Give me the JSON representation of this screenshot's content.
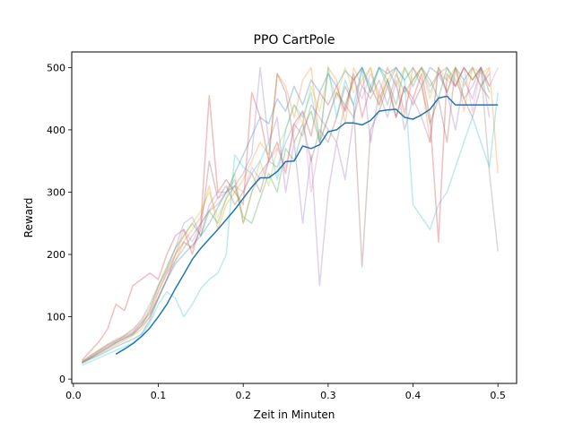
{
  "chart_data": {
    "type": "line",
    "title": "PPO CartPole",
    "xlabel": "Zeit in Minuten",
    "ylabel": "Reward",
    "xlim": [
      -0.002,
      0.522
    ],
    "ylim": [
      -7,
      525
    ],
    "xticks": [
      0.0,
      0.1,
      0.2,
      0.3,
      0.4,
      0.5
    ],
    "xtick_labels": [
      "0.0",
      "0.1",
      "0.2",
      "0.3",
      "0.4",
      "0.5"
    ],
    "yticks": [
      0,
      100,
      200,
      300,
      400,
      500
    ],
    "ytick_labels": [
      "0",
      "100",
      "200",
      "300",
      "400",
      "500"
    ],
    "grid": false,
    "legend": "none",
    "runs_opacity": 0.3,
    "series": [
      {
        "role": "run",
        "color": "#1f77b4",
        "x": [
          0.01,
          0.02,
          0.03,
          0.04,
          0.05,
          0.06,
          0.07,
          0.08,
          0.09,
          0.1,
          0.11,
          0.12,
          0.13,
          0.14,
          0.15,
          0.16,
          0.17,
          0.18,
          0.19,
          0.2,
          0.21,
          0.22,
          0.23,
          0.24,
          0.25,
          0.26,
          0.27,
          0.28,
          0.29,
          0.3,
          0.31,
          0.32,
          0.33,
          0.34,
          0.35,
          0.36,
          0.37,
          0.38,
          0.39,
          0.4,
          0.41,
          0.42,
          0.43,
          0.44,
          0.45,
          0.46,
          0.47,
          0.48,
          0.49
        ],
        "y": [
          25,
          32,
          38,
          45,
          52,
          58,
          64,
          72,
          95,
          130,
          160,
          185,
          200,
          215,
          230,
          250,
          275,
          300,
          330,
          360,
          390,
          420,
          410,
          450,
          430,
          470,
          440,
          480,
          460,
          490,
          470,
          495,
          480,
          500,
          470,
          500,
          490,
          500,
          480,
          500,
          470,
          500,
          490,
          460,
          500,
          480,
          500,
          470,
          490
        ]
      },
      {
        "role": "run",
        "color": "#ff7f0e",
        "x": [
          0.01,
          0.02,
          0.03,
          0.04,
          0.05,
          0.06,
          0.07,
          0.08,
          0.09,
          0.1,
          0.11,
          0.12,
          0.13,
          0.14,
          0.15,
          0.16,
          0.17,
          0.18,
          0.19,
          0.2,
          0.21,
          0.22,
          0.23,
          0.24,
          0.25,
          0.26,
          0.27,
          0.28,
          0.29,
          0.3,
          0.31,
          0.32,
          0.33,
          0.34,
          0.35,
          0.36,
          0.37,
          0.38,
          0.39,
          0.4,
          0.41,
          0.42,
          0.43,
          0.44,
          0.45,
          0.46,
          0.47,
          0.48,
          0.49,
          0.5
        ],
        "y": [
          28,
          34,
          40,
          48,
          55,
          62,
          70,
          80,
          100,
          140,
          170,
          190,
          220,
          240,
          260,
          310,
          240,
          280,
          300,
          320,
          350,
          380,
          360,
          490,
          470,
          420,
          480,
          500,
          380,
          500,
          480,
          410,
          500,
          470,
          500,
          450,
          480,
          500,
          420,
          500,
          480,
          380,
          500,
          460,
          500,
          430,
          500,
          470,
          500,
          330
        ]
      },
      {
        "role": "run",
        "color": "#2ca02c",
        "x": [
          0.01,
          0.02,
          0.03,
          0.04,
          0.05,
          0.06,
          0.07,
          0.08,
          0.09,
          0.1,
          0.11,
          0.12,
          0.13,
          0.14,
          0.15,
          0.16,
          0.17,
          0.18,
          0.19,
          0.2,
          0.21,
          0.22,
          0.23,
          0.24,
          0.25,
          0.26,
          0.27,
          0.28,
          0.29,
          0.3,
          0.31,
          0.32,
          0.33,
          0.34,
          0.35,
          0.36,
          0.37,
          0.38,
          0.39,
          0.4,
          0.41,
          0.42,
          0.43,
          0.44,
          0.45,
          0.46,
          0.47,
          0.48,
          0.49
        ],
        "y": [
          27,
          33,
          42,
          50,
          58,
          65,
          72,
          85,
          110,
          150,
          180,
          210,
          230,
          250,
          230,
          270,
          250,
          290,
          310,
          260,
          250,
          290,
          330,
          300,
          370,
          350,
          400,
          430,
          380,
          420,
          460,
          440,
          480,
          500,
          460,
          500,
          480,
          440,
          500,
          470,
          500,
          480,
          450,
          500,
          470,
          500,
          480,
          500,
          460
        ]
      },
      {
        "role": "run",
        "color": "#d62728",
        "x": [
          0.01,
          0.02,
          0.03,
          0.04,
          0.05,
          0.06,
          0.07,
          0.08,
          0.09,
          0.1,
          0.11,
          0.12,
          0.13,
          0.14,
          0.15,
          0.16,
          0.17,
          0.18,
          0.19,
          0.2,
          0.21,
          0.22,
          0.23,
          0.24,
          0.25,
          0.26,
          0.27,
          0.28,
          0.29,
          0.3,
          0.31,
          0.32,
          0.33,
          0.34,
          0.35,
          0.36,
          0.37,
          0.38,
          0.39,
          0.4,
          0.41,
          0.42,
          0.43,
          0.44,
          0.45,
          0.46,
          0.47,
          0.48,
          0.49
        ],
        "y": [
          30,
          45,
          60,
          80,
          120,
          110,
          150,
          160,
          170,
          160,
          200,
          230,
          240,
          200,
          250,
          455,
          300,
          320,
          300,
          280,
          460,
          420,
          350,
          380,
          330,
          410,
          430,
          390,
          460,
          440,
          470,
          430,
          490,
          420,
          470,
          440,
          480,
          420,
          470,
          450,
          490,
          420,
          220,
          490,
          470,
          500,
          480,
          500,
          470
        ]
      },
      {
        "role": "run",
        "color": "#9467bd",
        "x": [
          0.01,
          0.02,
          0.03,
          0.04,
          0.05,
          0.06,
          0.07,
          0.08,
          0.09,
          0.1,
          0.11,
          0.12,
          0.13,
          0.14,
          0.15,
          0.16,
          0.17,
          0.18,
          0.19,
          0.2,
          0.21,
          0.22,
          0.23,
          0.24,
          0.25,
          0.26,
          0.27,
          0.28,
          0.29,
          0.3,
          0.31,
          0.32,
          0.33,
          0.34,
          0.35,
          0.36,
          0.37,
          0.38,
          0.39,
          0.4,
          0.41,
          0.42,
          0.43,
          0.44,
          0.45,
          0.46,
          0.47,
          0.48,
          0.49
        ],
        "y": [
          26,
          35,
          44,
          52,
          60,
          70,
          80,
          95,
          120,
          150,
          175,
          210,
          250,
          260,
          230,
          280,
          300,
          300,
          310,
          330,
          360,
          500,
          380,
          420,
          300,
          380,
          250,
          360,
          150,
          300,
          380,
          320,
          420,
          500,
          380,
          460,
          420,
          480,
          400,
          450,
          420,
          380,
          500,
          460,
          400,
          480,
          450,
          500,
          420
        ]
      },
      {
        "role": "run",
        "color": "#8c564b",
        "x": [
          0.01,
          0.02,
          0.03,
          0.04,
          0.05,
          0.06,
          0.07,
          0.08,
          0.09,
          0.1,
          0.11,
          0.12,
          0.13,
          0.14,
          0.15,
          0.16,
          0.17,
          0.18,
          0.19,
          0.2,
          0.21,
          0.22,
          0.23,
          0.24,
          0.25,
          0.26,
          0.27,
          0.28,
          0.29,
          0.3,
          0.31,
          0.32,
          0.33,
          0.34,
          0.35,
          0.36,
          0.37,
          0.38,
          0.39,
          0.4,
          0.41,
          0.42,
          0.43,
          0.44,
          0.45,
          0.46,
          0.47,
          0.48,
          0.49
        ],
        "y": [
          28,
          38,
          46,
          55,
          62,
          68,
          75,
          90,
          105,
          130,
          160,
          200,
          220,
          210,
          240,
          350,
          290,
          310,
          280,
          300,
          330,
          300,
          350,
          490,
          460,
          380,
          410,
          350,
          400,
          380,
          420,
          470,
          440,
          180,
          400,
          430,
          470,
          420,
          470,
          440,
          470,
          410,
          450,
          380,
          500,
          450,
          420,
          470,
          450
        ]
      },
      {
        "role": "run",
        "color": "#e377c2",
        "x": [
          0.01,
          0.02,
          0.03,
          0.04,
          0.05,
          0.06,
          0.07,
          0.08,
          0.09,
          0.1,
          0.11,
          0.12,
          0.13,
          0.14,
          0.15,
          0.16,
          0.17,
          0.18,
          0.19,
          0.2,
          0.21,
          0.22,
          0.23,
          0.24,
          0.25,
          0.26,
          0.27,
          0.28,
          0.29,
          0.3,
          0.31,
          0.32,
          0.33,
          0.34,
          0.35,
          0.36,
          0.37,
          0.38,
          0.39,
          0.4,
          0.41,
          0.42,
          0.43,
          0.44,
          0.45,
          0.46,
          0.47,
          0.48,
          0.49,
          0.5
        ],
        "y": [
          27,
          36,
          45,
          54,
          60,
          66,
          74,
          88,
          110,
          140,
          170,
          200,
          240,
          220,
          250,
          270,
          290,
          300,
          310,
          300,
          340,
          320,
          350,
          370,
          340,
          400,
          430,
          300,
          380,
          420,
          460,
          430,
          480,
          450,
          490,
          460,
          500,
          470,
          430,
          480,
          500,
          460,
          490,
          480,
          470,
          500,
          430,
          500,
          470,
          500
        ]
      },
      {
        "role": "run",
        "color": "#7f7f7f",
        "x": [
          0.01,
          0.02,
          0.03,
          0.04,
          0.05,
          0.06,
          0.07,
          0.08,
          0.09,
          0.1,
          0.11,
          0.12,
          0.13,
          0.14,
          0.15,
          0.16,
          0.17,
          0.18,
          0.19,
          0.2,
          0.21,
          0.22,
          0.23,
          0.24,
          0.25,
          0.26,
          0.27,
          0.28,
          0.29,
          0.3,
          0.31,
          0.32,
          0.33,
          0.34,
          0.35,
          0.36,
          0.37,
          0.38,
          0.39,
          0.4,
          0.41,
          0.42,
          0.43,
          0.44,
          0.45,
          0.46,
          0.47,
          0.48,
          0.49,
          0.5
        ],
        "y": [
          26,
          34,
          42,
          50,
          58,
          65,
          72,
          85,
          100,
          130,
          160,
          190,
          210,
          230,
          250,
          270,
          280,
          300,
          320,
          250,
          300,
          330,
          350,
          340,
          380,
          410,
          390,
          440,
          420,
          400,
          380,
          440,
          420,
          470,
          450,
          480,
          440,
          490,
          460,
          480,
          500,
          470,
          490,
          500,
          480,
          450,
          470,
          500,
          330,
          205
        ]
      },
      {
        "role": "run",
        "color": "#bcbd22",
        "x": [
          0.01,
          0.02,
          0.03,
          0.04,
          0.05,
          0.06,
          0.07,
          0.08,
          0.09,
          0.1,
          0.11,
          0.12,
          0.13,
          0.14,
          0.15,
          0.16,
          0.17,
          0.18,
          0.19,
          0.2,
          0.21,
          0.22,
          0.23,
          0.24,
          0.25,
          0.26,
          0.27,
          0.28,
          0.29,
          0.3,
          0.31,
          0.32,
          0.33,
          0.34,
          0.35,
          0.36,
          0.37,
          0.38,
          0.39,
          0.4,
          0.41,
          0.42,
          0.43,
          0.44,
          0.45,
          0.46,
          0.47,
          0.48,
          0.49
        ],
        "y": [
          28,
          37,
          47,
          56,
          64,
          70,
          78,
          92,
          115,
          145,
          175,
          200,
          230,
          250,
          270,
          300,
          260,
          290,
          330,
          250,
          300,
          350,
          310,
          370,
          400,
          440,
          410,
          470,
          430,
          490,
          450,
          500,
          460,
          480,
          500,
          440,
          500,
          470,
          500,
          480,
          500,
          450,
          500,
          480,
          500,
          470,
          500,
          490,
          500
        ]
      },
      {
        "role": "run",
        "color": "#17becf",
        "x": [
          0.01,
          0.02,
          0.03,
          0.04,
          0.05,
          0.06,
          0.07,
          0.08,
          0.09,
          0.1,
          0.11,
          0.12,
          0.13,
          0.14,
          0.15,
          0.16,
          0.17,
          0.18,
          0.19,
          0.2,
          0.21,
          0.22,
          0.23,
          0.24,
          0.25,
          0.26,
          0.27,
          0.28,
          0.29,
          0.3,
          0.31,
          0.32,
          0.33,
          0.34,
          0.35,
          0.36,
          0.37,
          0.38,
          0.39,
          0.4,
          0.41,
          0.42,
          0.43,
          0.44,
          0.45,
          0.46,
          0.47,
          0.48,
          0.49,
          0.5
        ],
        "y": [
          22,
          28,
          34,
          40,
          46,
          52,
          58,
          70,
          90,
          120,
          140,
          130,
          100,
          120,
          145,
          160,
          170,
          200,
          360,
          340,
          330,
          350,
          380,
          320,
          400,
          440,
          420,
          460,
          380,
          500,
          420,
          480,
          440,
          500,
          460,
          500,
          470,
          500,
          480,
          280,
          260,
          240,
          280,
          300,
          340,
          380,
          420,
          380,
          340,
          460
        ]
      },
      {
        "role": "mean",
        "color": "#1f77b4",
        "x": [
          0.05,
          0.06,
          0.07,
          0.08,
          0.09,
          0.1,
          0.11,
          0.12,
          0.13,
          0.14,
          0.15,
          0.16,
          0.17,
          0.18,
          0.19,
          0.2,
          0.21,
          0.22,
          0.23,
          0.24,
          0.25,
          0.26,
          0.27,
          0.28,
          0.29,
          0.3,
          0.31,
          0.32,
          0.33,
          0.34,
          0.35,
          0.36,
          0.37,
          0.38,
          0.39,
          0.4,
          0.41,
          0.42,
          0.43,
          0.44,
          0.45,
          0.46,
          0.47,
          0.48,
          0.49,
          0.5
        ],
        "y": [
          40,
          48,
          57,
          68,
          82,
          100,
          120,
          145,
          168,
          192,
          210,
          225,
          240,
          256,
          272,
          290,
          308,
          323,
          323,
          333,
          349,
          350,
          374,
          370,
          376,
          397,
          400,
          411,
          411,
          408,
          415,
          430,
          432,
          433,
          420,
          417,
          424,
          433,
          451,
          454,
          440,
          440,
          440,
          440,
          440,
          440
        ]
      }
    ]
  }
}
